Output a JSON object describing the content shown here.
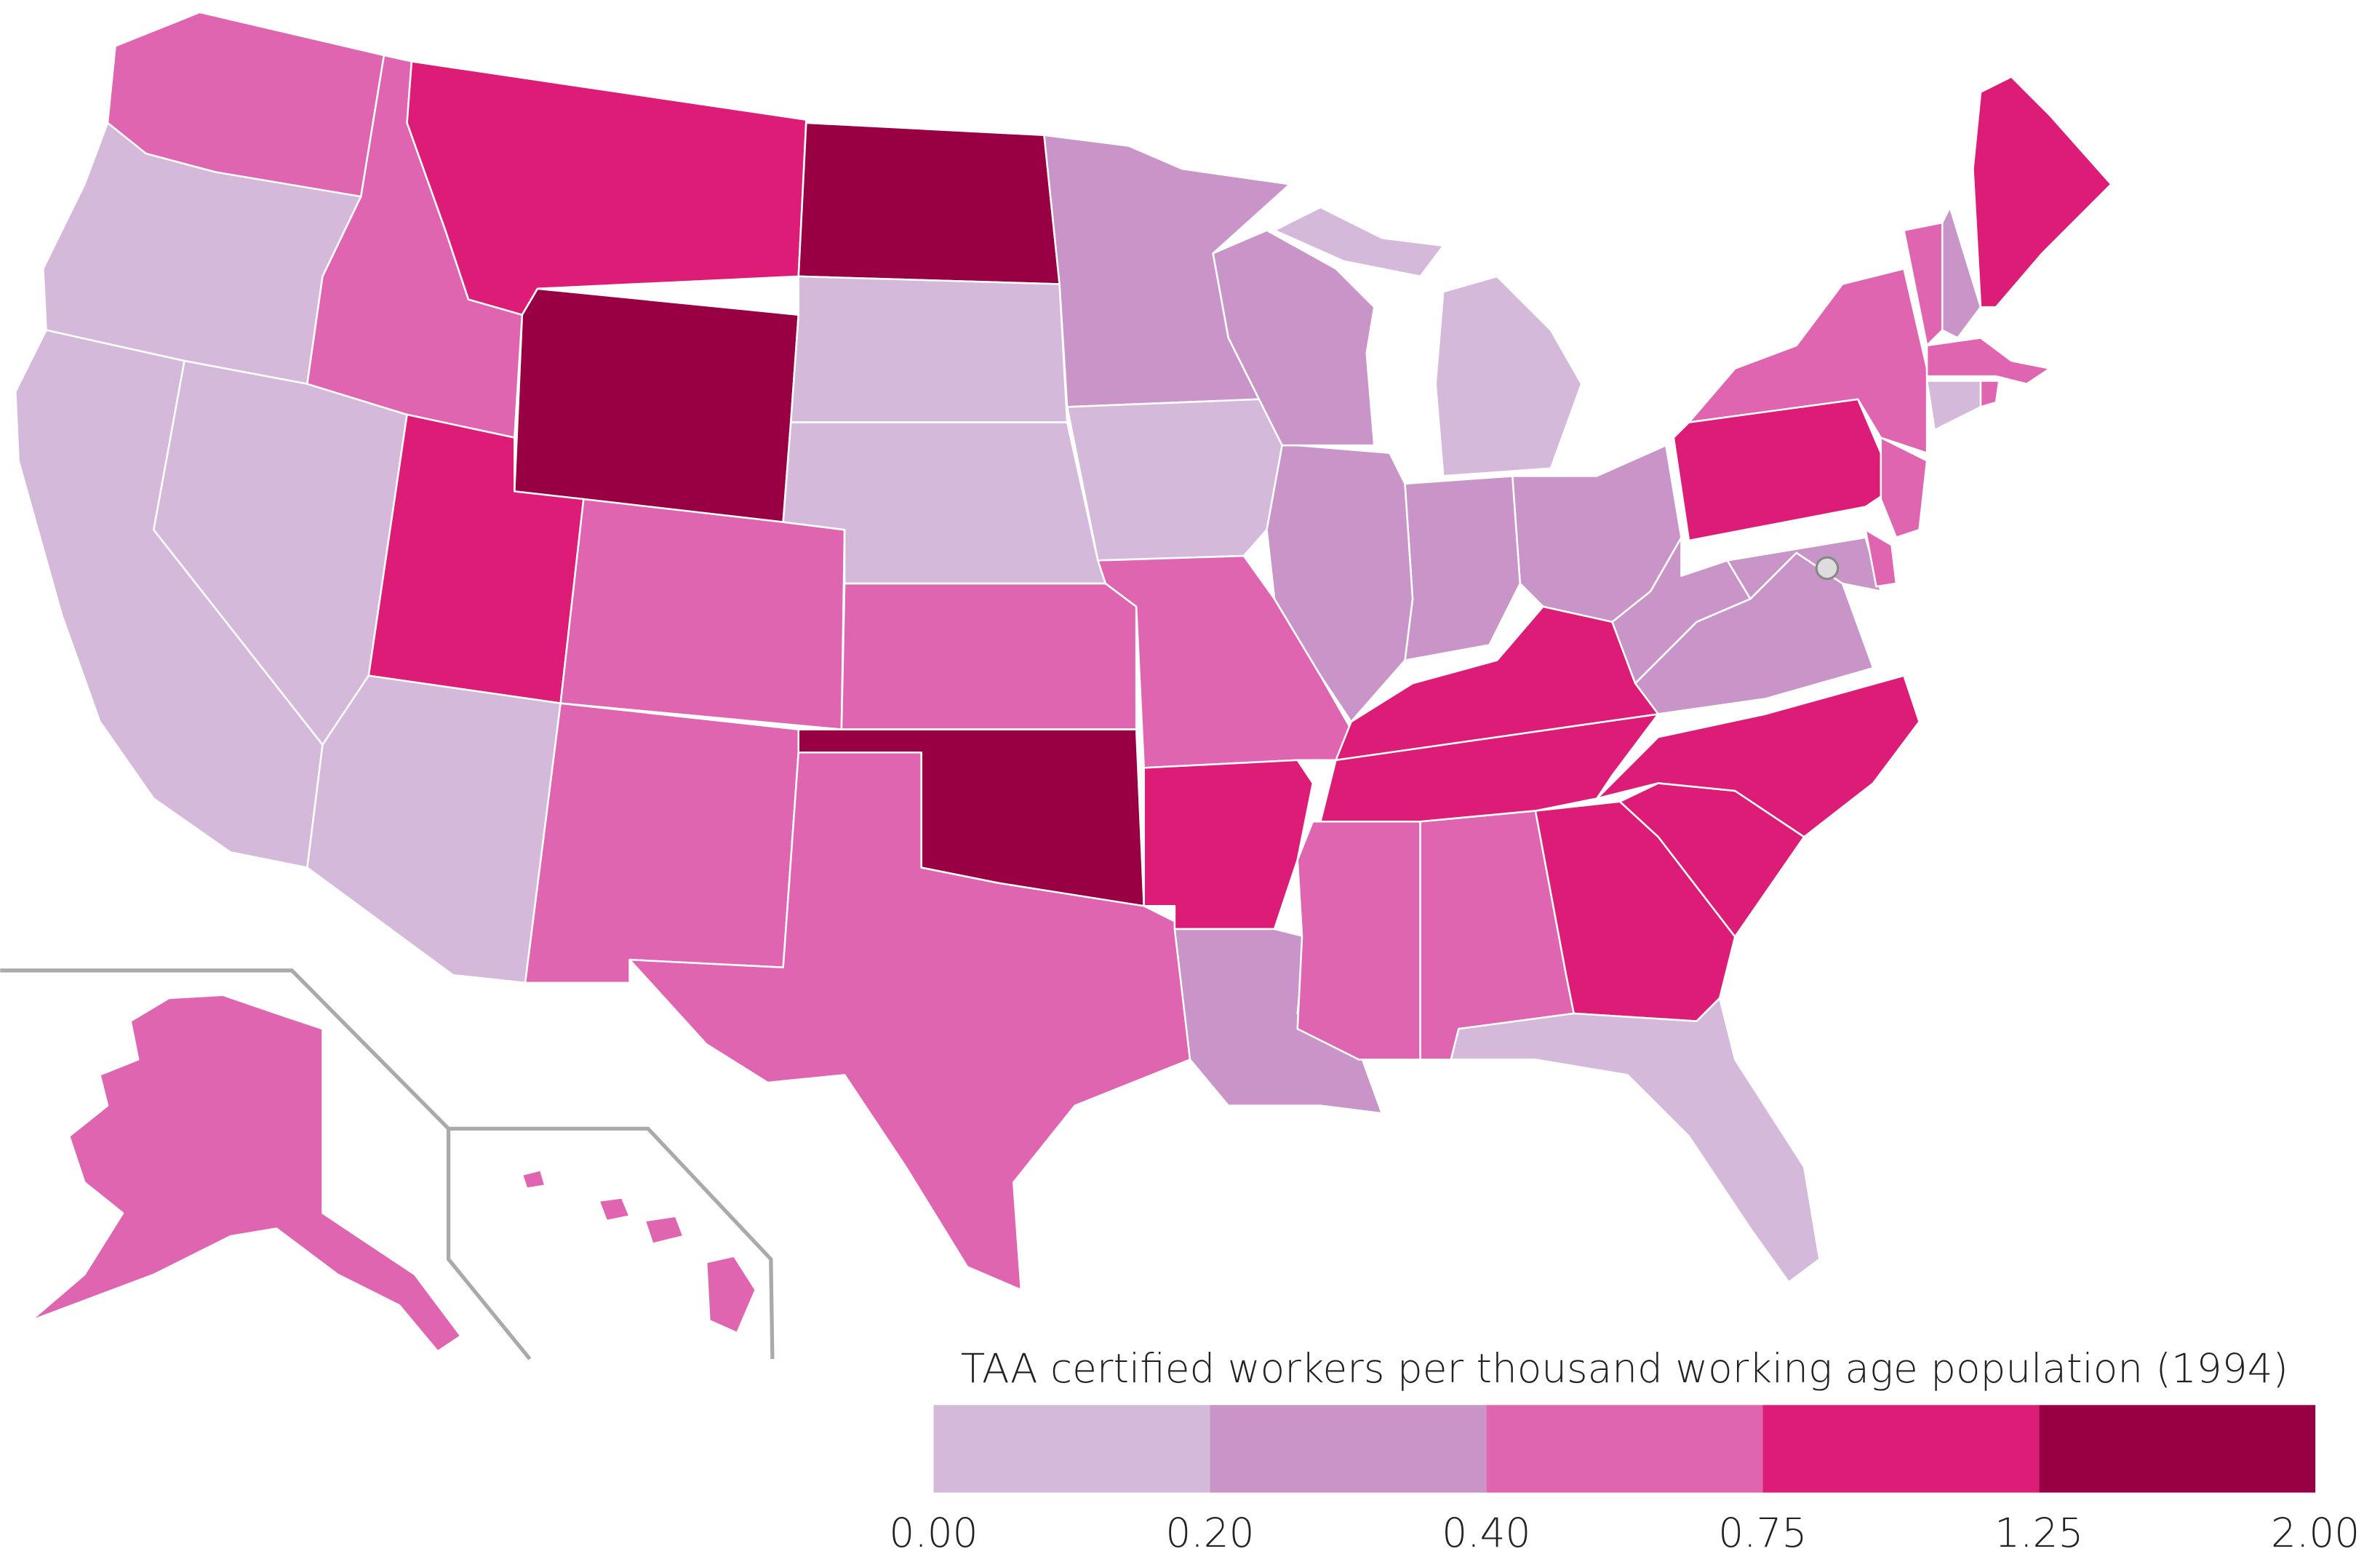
{
  "legend": {
    "title": "TAA certified workers per thousand working age population (1994)",
    "ticks": [
      {
        "value": 0,
        "label": "0.00"
      },
      {
        "value": 0.2,
        "label": "0.20"
      },
      {
        "value": 0.4,
        "label": "0.40"
      },
      {
        "value": 0.75,
        "label": "0.75"
      },
      {
        "value": 1.25,
        "label": "1.25"
      },
      {
        "value": 2,
        "label": "2.00"
      }
    ],
    "colors": [
      "#d4b9da",
      "#c994c7",
      "#df65b0",
      "#dd1c77",
      "#980043"
    ]
  }
}
